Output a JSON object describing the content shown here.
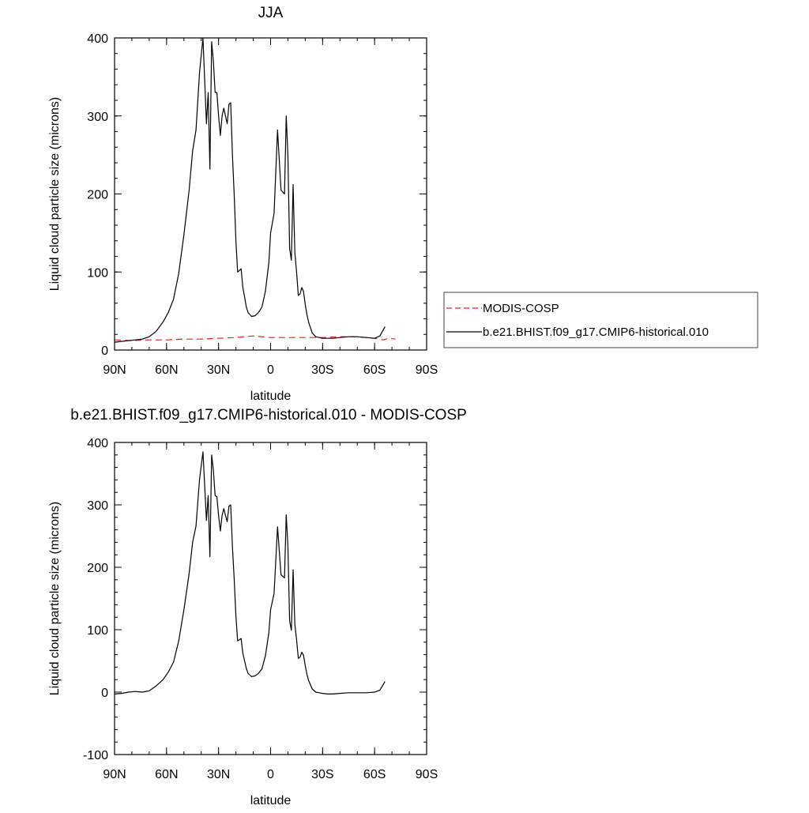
{
  "colors": {
    "model": "#000000",
    "obs": "#e02020"
  },
  "chart_data": [
    {
      "type": "line",
      "title": "JJA",
      "xlabel": "latitude",
      "ylabel": "Liquid cloud particle size (microns)",
      "xlim": [
        90,
        -90
      ],
      "ylim": [
        0,
        400
      ],
      "xticks": [
        90,
        60,
        30,
        0,
        -30,
        -60,
        -90
      ],
      "xtick_labels": [
        "90N",
        "60N",
        "30N",
        "0",
        "30S",
        "60S",
        "90S"
      ],
      "yticks": [
        0,
        100,
        200,
        300,
        400
      ],
      "ytick_labels": [
        "0",
        "100",
        "200",
        "300",
        "400"
      ],
      "legend": [
        "MODIS-COSP",
        "b.e21.BHIST.f09_g17.CMIP6-historical.010"
      ],
      "legend_position": "right",
      "series": [
        {
          "name": "MODIS-COSP",
          "color": "#e02020",
          "style": "dashed",
          "x": [
            90,
            80,
            70,
            60,
            50,
            40,
            30,
            20,
            10,
            5,
            0,
            -10,
            -20,
            -30,
            -40,
            -50,
            -60,
            -65,
            -68,
            -72
          ],
          "y": [
            13,
            12,
            13,
            13,
            14,
            14,
            15,
            16,
            18,
            17,
            16,
            16,
            16,
            16,
            17,
            17,
            15,
            13,
            15,
            14
          ]
        },
        {
          "name": "b.e21.BHIST.f09_g17.CMIP6-historical.010",
          "color": "#000000",
          "style": "solid",
          "x": [
            90,
            86,
            82,
            78,
            74,
            70,
            66,
            62,
            59,
            56,
            53,
            50,
            47,
            45,
            43,
            41,
            39,
            38,
            37,
            36,
            35,
            34,
            33,
            32,
            31,
            30,
            29,
            28,
            27,
            26,
            25,
            24,
            23,
            22,
            21,
            20,
            19,
            17,
            16,
            15,
            14,
            13,
            11,
            9,
            7,
            5,
            3,
            1,
            0,
            -2,
            -4,
            -6,
            -8,
            -9,
            -10,
            -11,
            -12,
            -13,
            -14,
            -15,
            -16,
            -17,
            -18,
            -19,
            -20,
            -21,
            -22,
            -24,
            -26,
            -28,
            -30,
            -33,
            -36,
            -40,
            -45,
            -50,
            -55,
            -60,
            -63,
            -66
          ],
          "y": [
            10,
            11,
            12,
            13,
            14,
            17,
            24,
            36,
            48,
            65,
            98,
            148,
            205,
            255,
            282,
            355,
            400,
            345,
            290,
            330,
            232,
            395,
            370,
            330,
            330,
            300,
            275,
            300,
            310,
            300,
            290,
            315,
            317,
            250,
            200,
            140,
            100,
            104,
            80,
            68,
            55,
            48,
            43,
            44,
            48,
            55,
            75,
            112,
            150,
            175,
            282,
            205,
            200,
            300,
            250,
            130,
            115,
            212,
            125,
            100,
            70,
            72,
            80,
            75,
            58,
            45,
            35,
            22,
            17,
            16,
            15,
            15,
            15,
            16,
            17,
            17,
            16,
            15,
            18,
            30
          ]
        }
      ]
    },
    {
      "type": "line",
      "title": "b.e21.BHIST.f09_g17.CMIP6-historical.010 - MODIS-COSP",
      "xlabel": "latitude",
      "ylabel": "Liquid cloud particle size (microns)",
      "xlim": [
        90,
        -90
      ],
      "ylim": [
        -100,
        400
      ],
      "xticks": [
        90,
        60,
        30,
        0,
        -30,
        -60,
        -90
      ],
      "xtick_labels": [
        "90N",
        "60N",
        "30N",
        "0",
        "30S",
        "60S",
        "90S"
      ],
      "yticks": [
        -100,
        0,
        100,
        200,
        300,
        400
      ],
      "ytick_labels": [
        "-100",
        "0",
        "100",
        "200",
        "300",
        "400"
      ],
      "series": [
        {
          "color": "#000000",
          "style": "solid",
          "x": [
            90,
            86,
            82,
            78,
            74,
            70,
            66,
            62,
            59,
            56,
            53,
            50,
            47,
            45,
            43,
            41,
            39,
            38,
            37,
            36,
            35,
            34,
            33,
            32,
            31,
            30,
            29,
            28,
            27,
            26,
            25,
            24,
            23,
            22,
            21,
            20,
            19,
            17,
            16,
            15,
            14,
            13,
            11,
            9,
            7,
            5,
            3,
            1,
            0,
            -2,
            -4,
            -6,
            -8,
            -9,
            -10,
            -11,
            -12,
            -13,
            -14,
            -15,
            -16,
            -17,
            -18,
            -19,
            -20,
            -21,
            -22,
            -24,
            -26,
            -28,
            -30,
            -33,
            -36,
            -40,
            -45,
            -50,
            -55,
            -60,
            -63,
            -66
          ],
          "y": [
            -3,
            -2,
            0,
            1,
            0,
            2,
            10,
            20,
            32,
            48,
            82,
            132,
            190,
            240,
            266,
            340,
            385,
            330,
            275,
            315,
            217,
            380,
            355,
            315,
            313,
            283,
            258,
            283,
            294,
            283,
            273,
            298,
            300,
            233,
            182,
            122,
            82,
            86,
            62,
            50,
            38,
            30,
            25,
            26,
            30,
            37,
            58,
            95,
            132,
            158,
            265,
            188,
            183,
            284,
            234,
            114,
            99,
            196,
            109,
            84,
            54,
            56,
            64,
            59,
            42,
            28,
            18,
            5,
            0,
            -1,
            -2,
            -3,
            -3,
            -2,
            -1,
            -1,
            -1,
            0,
            3,
            17
          ]
        }
      ]
    }
  ]
}
